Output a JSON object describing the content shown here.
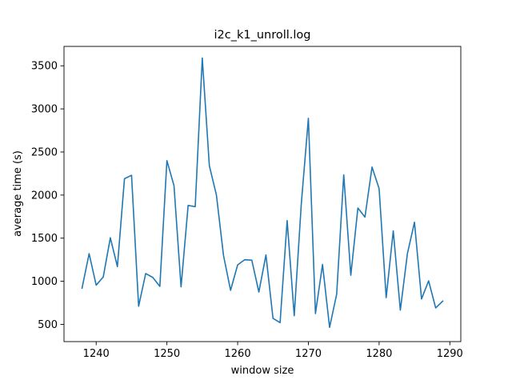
{
  "chart_data": {
    "type": "line",
    "title": "i2c_k1_unroll.log",
    "xlabel": "window size",
    "ylabel": "average time (s)",
    "xlim": [
      1235.45,
      1291.55
    ],
    "ylim": [
      300,
      3725
    ],
    "xticks": [
      1240,
      1250,
      1260,
      1270,
      1280,
      1290
    ],
    "yticks": [
      500,
      1000,
      1500,
      2000,
      2500,
      3000,
      3500
    ],
    "grid": false,
    "legend": null,
    "series": [
      {
        "color": "#1f77b4",
        "x": [
          1238,
          1239,
          1240,
          1241,
          1242,
          1243,
          1244,
          1245,
          1246,
          1247,
          1248,
          1249,
          1250,
          1251,
          1252,
          1253,
          1254,
          1255,
          1256,
          1257,
          1258,
          1259,
          1260,
          1261,
          1262,
          1263,
          1264,
          1265,
          1266,
          1267,
          1268,
          1269,
          1270,
          1271,
          1272,
          1273,
          1274,
          1275,
          1276,
          1277,
          1278,
          1279,
          1280,
          1281,
          1282,
          1283,
          1284,
          1285,
          1286,
          1287,
          1288,
          1289
        ],
        "y": [
          920,
          1320,
          955,
          1050,
          1505,
          1170,
          2190,
          2230,
          710,
          1090,
          1045,
          940,
          2400,
          2110,
          935,
          1880,
          1865,
          3590,
          2340,
          2000,
          1300,
          895,
          1190,
          1250,
          1245,
          875,
          1305,
          570,
          520,
          1705,
          600,
          1900,
          2890,
          625,
          1195,
          465,
          850,
          2235,
          1070,
          1850,
          1745,
          2325,
          2075,
          810,
          1585,
          665,
          1320,
          1685,
          795,
          1005,
          690,
          770
        ]
      }
    ]
  }
}
